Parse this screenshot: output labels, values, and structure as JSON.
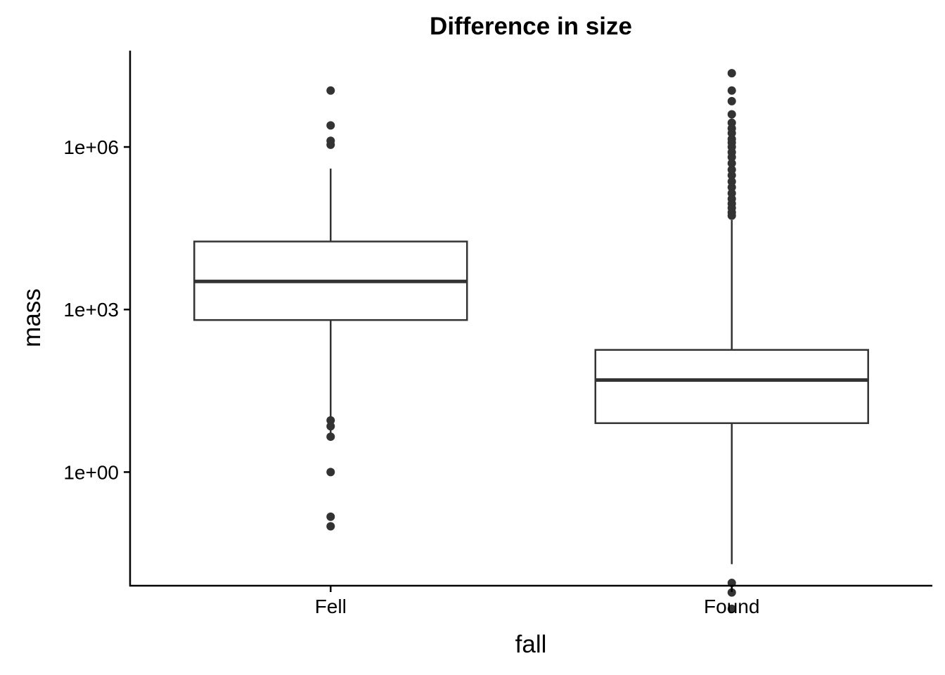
{
  "chart_data": {
    "type": "boxplot",
    "title": "Difference in size",
    "xlabel": "fall",
    "ylabel": "mass",
    "y_scale": "log10",
    "y_ticks": [
      1,
      1000,
      1000000
    ],
    "y_tick_labels": [
      "1e+00",
      "1e+03",
      "1e+06"
    ],
    "ylim": [
      0.008,
      60000000
    ],
    "grid": false,
    "colors": {
      "box_outline": "#333333",
      "box_fill": "#ffffff",
      "outlier": "#333333",
      "axis": "#000000"
    },
    "categories": [
      "Fell",
      "Found"
    ],
    "boxes": [
      {
        "category": "Fell",
        "whisker_low": 4.5,
        "q1": 640,
        "median": 3300,
        "q3": 18000,
        "whisker_high": 400000,
        "outliers": [
          11000000,
          2500000,
          1300000,
          1100000,
          9,
          7,
          4.5,
          1,
          0.15,
          0.1
        ]
      },
      {
        "category": "Found",
        "whisker_low": 0.02,
        "q1": 8,
        "median": 50,
        "q3": 180,
        "whisker_high": 45000,
        "outliers": [
          23000000,
          11000000,
          7000000,
          4000000,
          2800000,
          2200000,
          1800000,
          1400000,
          1200000,
          1000000,
          800000,
          650000,
          500000,
          380000,
          300000,
          230000,
          180000,
          140000,
          110000,
          90000,
          75000,
          62000,
          54000,
          0.009,
          0.006,
          0.003
        ]
      }
    ]
  }
}
